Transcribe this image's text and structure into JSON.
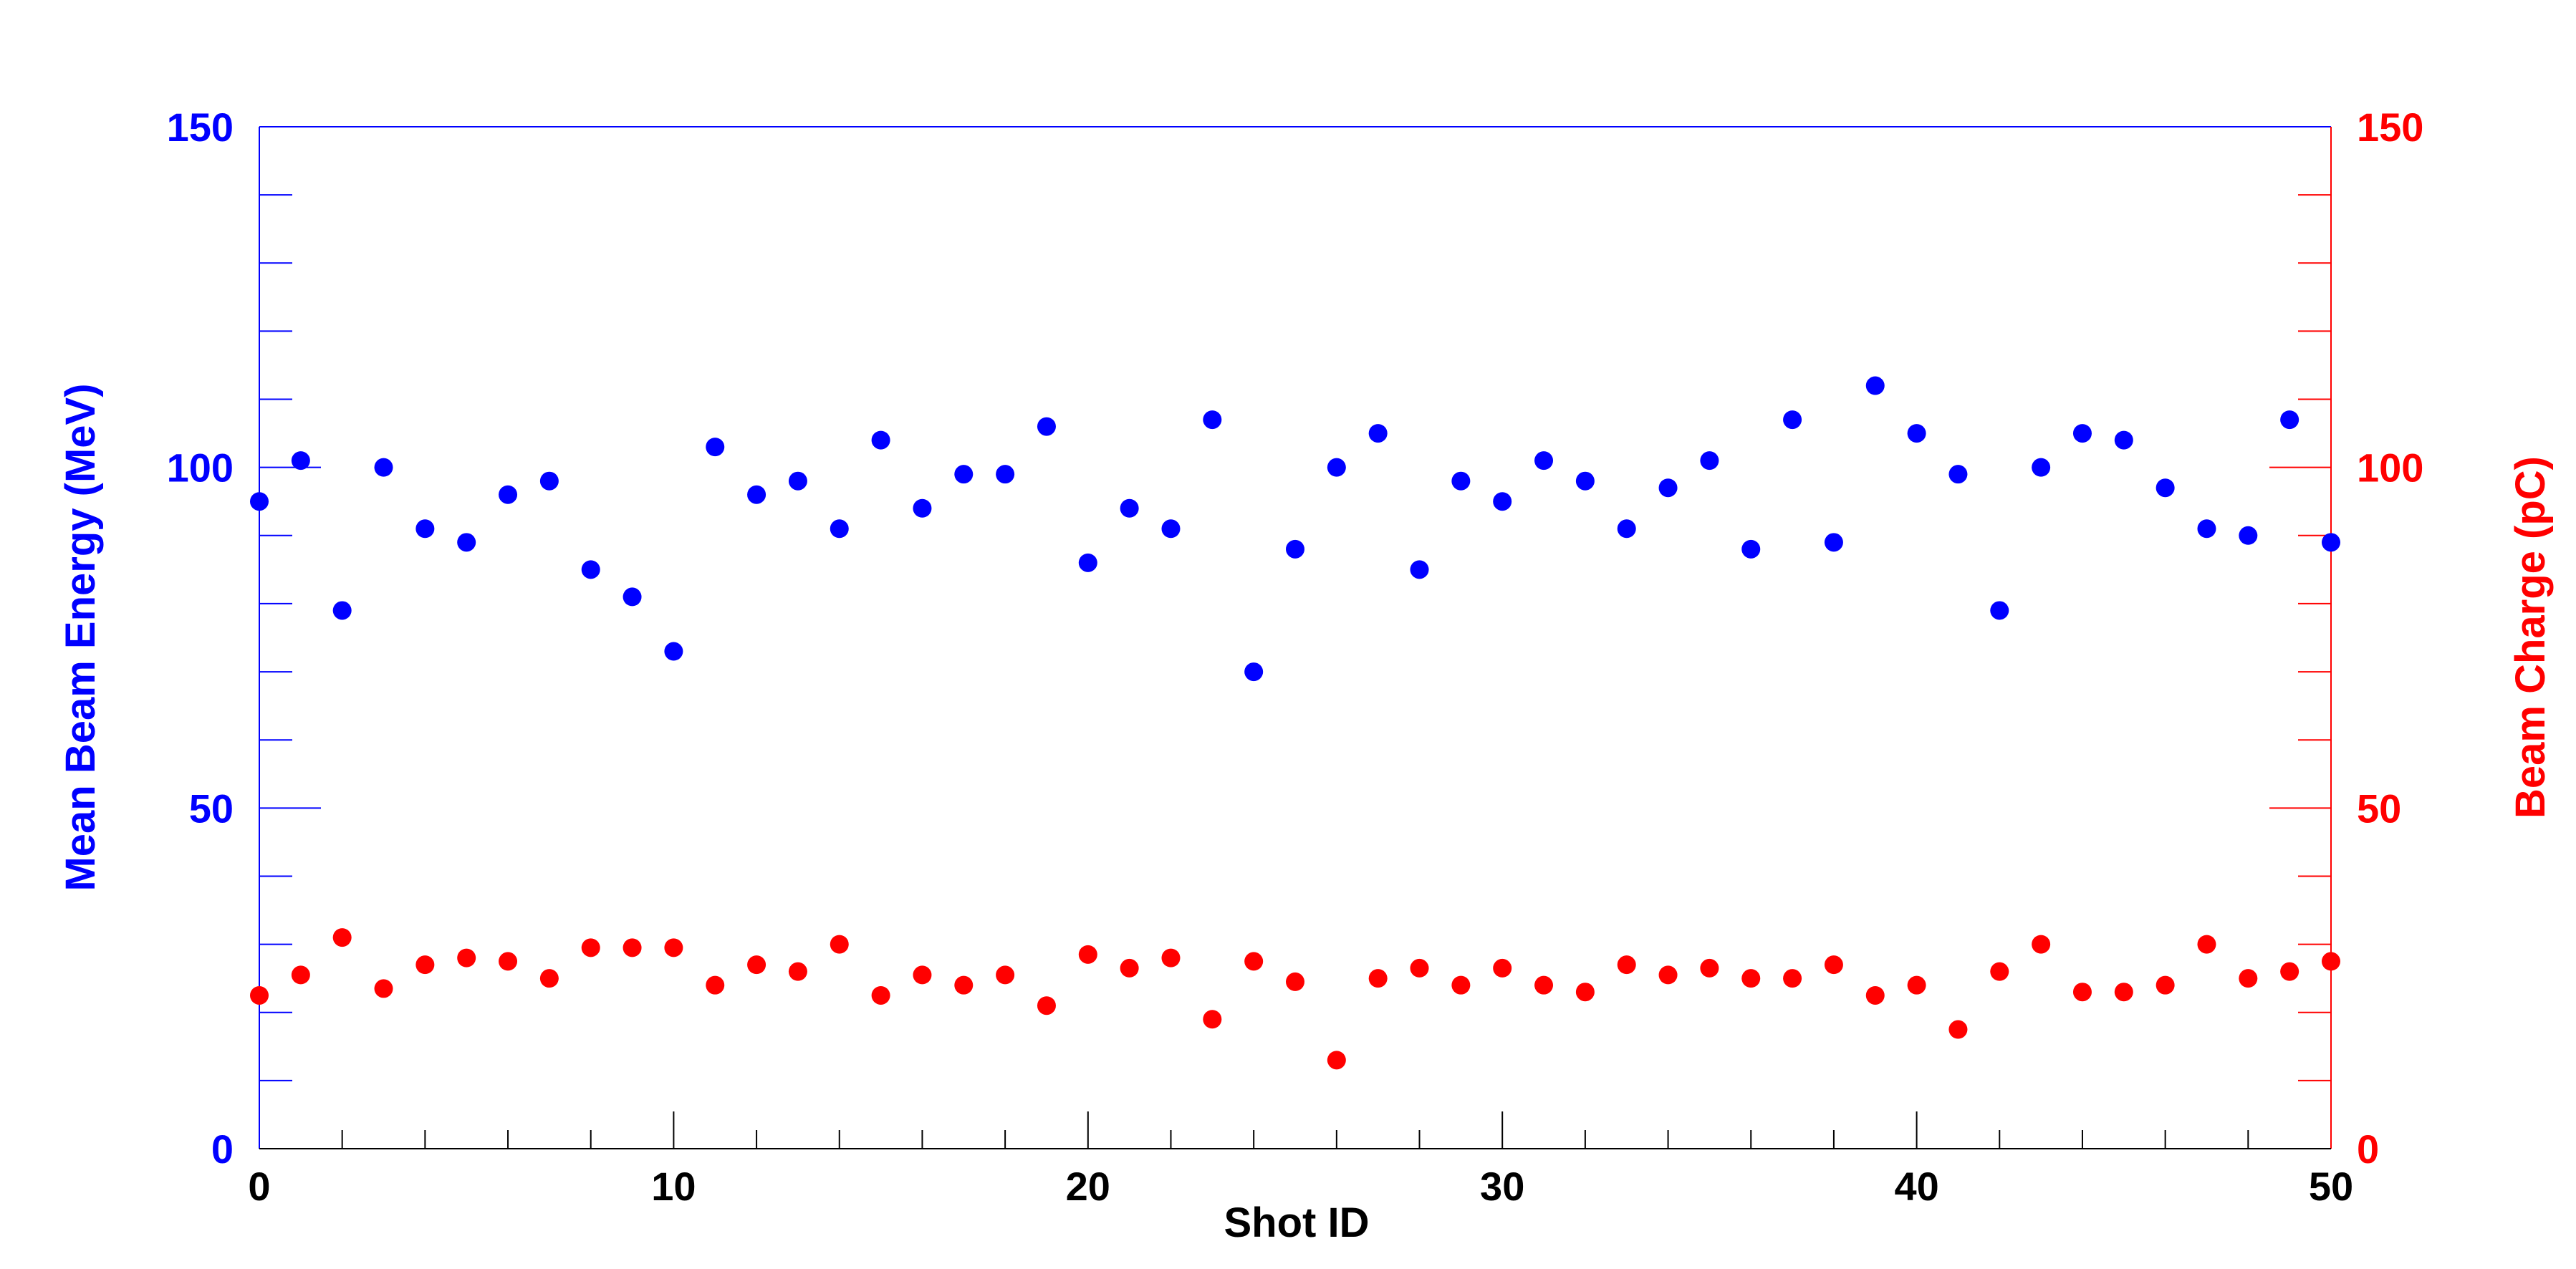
{
  "chart_data": {
    "type": "scatter",
    "title": "",
    "xlabel": "Shot ID",
    "ylabel_left": "Mean Beam Energy (MeV)",
    "ylabel_right": "Beam Charge (pC)",
    "xlim": [
      0,
      50
    ],
    "ylim_left": [
      0,
      150
    ],
    "ylim_right": [
      0,
      150
    ],
    "x_ticks": [
      "0",
      "10",
      "20",
      "30",
      "40",
      "50"
    ],
    "y_left_ticks": [
      "0",
      "50",
      "100",
      "150"
    ],
    "y_right_ticks": [
      "0",
      "50",
      "100",
      "150"
    ],
    "grid": false,
    "colors": {
      "left_axis": "#0000ff",
      "right_axis": "#ff0000",
      "frame": "#000000"
    },
    "series": [
      {
        "axis": "left",
        "color": "#0000ff",
        "x": [
          0,
          1,
          2,
          3,
          4,
          5,
          6,
          7,
          8,
          9,
          10,
          11,
          12,
          13,
          14,
          15,
          16,
          17,
          18,
          19,
          20,
          21,
          22,
          23,
          24,
          25,
          26,
          27,
          28,
          29,
          30,
          31,
          32,
          33,
          34,
          35,
          36,
          37,
          38,
          39,
          40,
          41,
          42,
          43,
          44,
          45,
          46,
          47,
          48,
          49,
          50
        ],
        "values": [
          95,
          101,
          79,
          100,
          91,
          89,
          96,
          98,
          85,
          81,
          73,
          103,
          96,
          98,
          91,
          104,
          94,
          99,
          99,
          106,
          86,
          94,
          91,
          107,
          70,
          88,
          100,
          105,
          85,
          98,
          95,
          101,
          98,
          91,
          97,
          101,
          88,
          107,
          89,
          112,
          105,
          99,
          79,
          100,
          105,
          104,
          97,
          91,
          90,
          107,
          89
        ]
      },
      {
        "axis": "right",
        "color": "#ff0000",
        "x": [
          0,
          1,
          2,
          3,
          4,
          5,
          6,
          7,
          8,
          9,
          10,
          11,
          12,
          13,
          14,
          15,
          16,
          17,
          18,
          19,
          20,
          21,
          22,
          23,
          24,
          25,
          26,
          27,
          28,
          29,
          30,
          31,
          32,
          33,
          34,
          35,
          36,
          37,
          38,
          39,
          40,
          41,
          42,
          43,
          44,
          45,
          46,
          47,
          48,
          49,
          50
        ],
        "values": [
          22.5,
          25.5,
          31,
          23.5,
          27,
          28,
          27.5,
          25,
          29.5,
          29.5,
          29.5,
          24,
          27,
          26,
          30,
          22.5,
          25.5,
          24,
          25.5,
          21,
          28.5,
          26.5,
          28,
          19,
          27.5,
          24.5,
          13,
          25,
          26.5,
          24,
          26.5,
          24,
          23,
          27,
          25.5,
          26.5,
          25,
          25,
          27,
          22.5,
          24,
          17.5,
          26,
          30,
          23,
          23,
          24,
          30,
          25,
          26,
          27.5
        ]
      }
    ]
  }
}
